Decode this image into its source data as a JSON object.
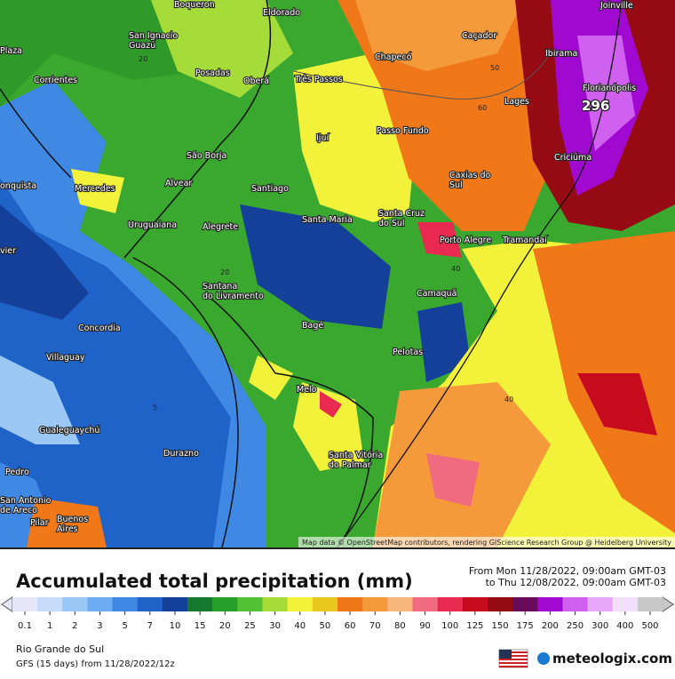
{
  "map": {
    "cities": [
      "Boqueron",
      "Eldorado",
      "Joinville",
      "Plaza",
      [
        "San Ignacio",
        "Guazú"
      ],
      "Caçador",
      "Chapecó",
      "Ibirama",
      "Posadas",
      "Oberá",
      "Corrientes",
      "Três Passos",
      "Florianópolis",
      "Lages",
      "Passo Fundo",
      "Ijuí",
      "Criciúma",
      "São Borja",
      [
        "Caxias do",
        "Sul"
      ],
      "Alvear",
      "onquista",
      "Mercedes",
      "Santiago",
      [
        "Santa Cruz",
        "do Sul"
      ],
      "Santa Maria",
      "Uruguaiana",
      "Alegrete",
      "Porto Alegre",
      "Tramandaí",
      "vier",
      [
        "Santana",
        "do Livramento"
      ],
      "Camaquã",
      "Concordia",
      "Bagé",
      "Pelotas",
      "Villaguay",
      "Melo",
      "Gualeguaychú",
      "Durazno",
      [
        "Santa Vitória",
        "do Palmar"
      ],
      "Pedro",
      [
        "San Antonio",
        "de Areco"
      ],
      "Pilar",
      [
        "Buenos",
        "Aires"
      ]
    ],
    "max_value": "296",
    "contour_labels": [
      "20",
      "50",
      "60",
      "20",
      "40",
      "5",
      "40"
    ],
    "attribution": "Map data © OpenStreetMap contributors, rendering GIScience Research Group @ Heidelberg University"
  },
  "footer": {
    "title": "Accumulated total precipitation (mm)",
    "from": "From Mon 11/28/2022, 09:00am GMT-03",
    "to": "to Thu 12/08/2022, 09:00am GMT-03",
    "scale": [
      {
        "label": "0.1",
        "color": "#e6e6f8"
      },
      {
        "label": "1",
        "color": "#c6dcf8"
      },
      {
        "label": "2",
        "color": "#9cc8f5"
      },
      {
        "label": "3",
        "color": "#6eaaf0"
      },
      {
        "label": "5",
        "color": "#3f88e4"
      },
      {
        "label": "7",
        "color": "#2063c8"
      },
      {
        "label": "10",
        "color": "#15409a"
      },
      {
        "label": "15",
        "color": "#16782e"
      },
      {
        "label": "20",
        "color": "#27a02a"
      },
      {
        "label": "25",
        "color": "#52c234"
      },
      {
        "label": "30",
        "color": "#a6dc3a"
      },
      {
        "label": "40",
        "color": "#f2f23a"
      },
      {
        "label": "50",
        "color": "#e8c81e"
      },
      {
        "label": "60",
        "color": "#f07818"
      },
      {
        "label": "70",
        "color": "#f59a3a"
      },
      {
        "label": "80",
        "color": "#f7b67a"
      },
      {
        "label": "90",
        "color": "#f06a80"
      },
      {
        "label": "100",
        "color": "#e82a50"
      },
      {
        "label": "125",
        "color": "#c80a1e"
      },
      {
        "label": "150",
        "color": "#960a14"
      },
      {
        "label": "175",
        "color": "#6a0a5a"
      },
      {
        "label": "200",
        "color": "#a00ad0"
      },
      {
        "label": "250",
        "color": "#d060f0"
      },
      {
        "label": "300",
        "color": "#e8a8f8"
      },
      {
        "label": "400",
        "color": "#f2e0fa"
      },
      {
        "label": "500",
        "color": "#c8c8c8"
      }
    ],
    "region": "Rio Grande do Sul",
    "model": "GFS (15 days) from 11/28/2022/12z",
    "brand": "meteologix.com"
  }
}
